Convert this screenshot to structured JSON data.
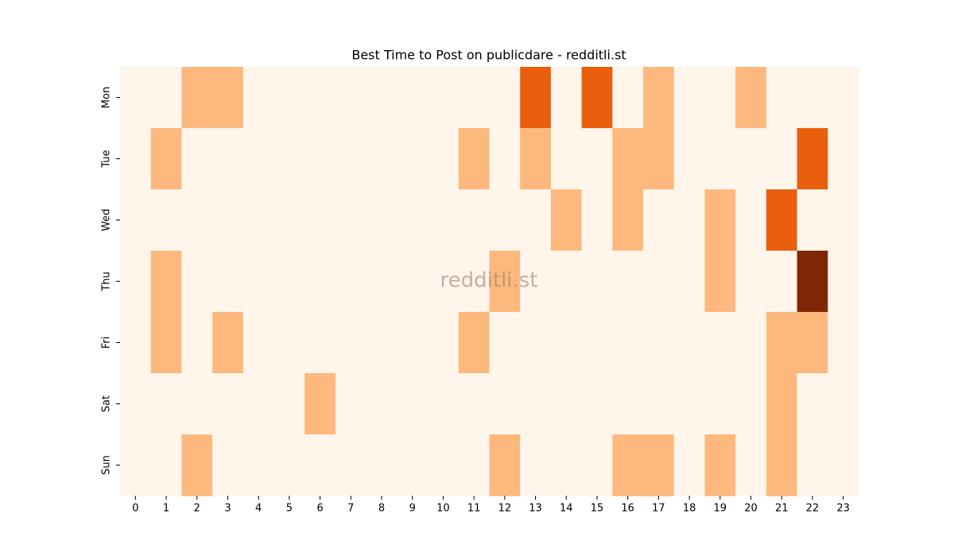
{
  "chart_data": {
    "type": "heatmap",
    "title": "Best Time to Post on publicdare - redditli.st",
    "watermark": "redditli.st",
    "x": [
      0,
      1,
      2,
      3,
      4,
      5,
      6,
      7,
      8,
      9,
      10,
      11,
      12,
      13,
      14,
      15,
      16,
      17,
      18,
      19,
      20,
      21,
      22,
      23
    ],
    "y": [
      "Mon",
      "Tue",
      "Wed",
      "Thu",
      "Fri",
      "Sat",
      "Sun"
    ],
    "values": [
      [
        0,
        0,
        1,
        1,
        0,
        0,
        0,
        0,
        0,
        0,
        0,
        0,
        0,
        2,
        0,
        2,
        0,
        1,
        0,
        0,
        1,
        0,
        0,
        0
      ],
      [
        0,
        1,
        0,
        0,
        0,
        0,
        0,
        0,
        0,
        0,
        0,
        1,
        0,
        1,
        0,
        0,
        1,
        1,
        0,
        0,
        0,
        0,
        2,
        0
      ],
      [
        0,
        0,
        0,
        0,
        0,
        0,
        0,
        0,
        0,
        0,
        0,
        0,
        0,
        0,
        1,
        0,
        1,
        0,
        0,
        1,
        0,
        2,
        0,
        0
      ],
      [
        0,
        1,
        0,
        0,
        0,
        0,
        0,
        0,
        0,
        0,
        0,
        0,
        1,
        0,
        0,
        0,
        0,
        0,
        0,
        1,
        0,
        0,
        3,
        0
      ],
      [
        0,
        1,
        0,
        1,
        0,
        0,
        0,
        0,
        0,
        0,
        0,
        1,
        0,
        0,
        0,
        0,
        0,
        0,
        0,
        0,
        0,
        1,
        1,
        0
      ],
      [
        0,
        0,
        0,
        0,
        0,
        0,
        1,
        0,
        0,
        0,
        0,
        0,
        0,
        0,
        0,
        0,
        0,
        0,
        0,
        0,
        0,
        1,
        0,
        0
      ],
      [
        0,
        0,
        1,
        0,
        0,
        0,
        0,
        0,
        0,
        0,
        0,
        0,
        1,
        0,
        0,
        0,
        1,
        1,
        0,
        1,
        0,
        1,
        0,
        0
      ]
    ],
    "zlim": [
      0,
      3
    ],
    "colorscale": [
      "#fff5eb",
      "#fdb97d",
      "#e95e0d",
      "#7f2704"
    ]
  }
}
